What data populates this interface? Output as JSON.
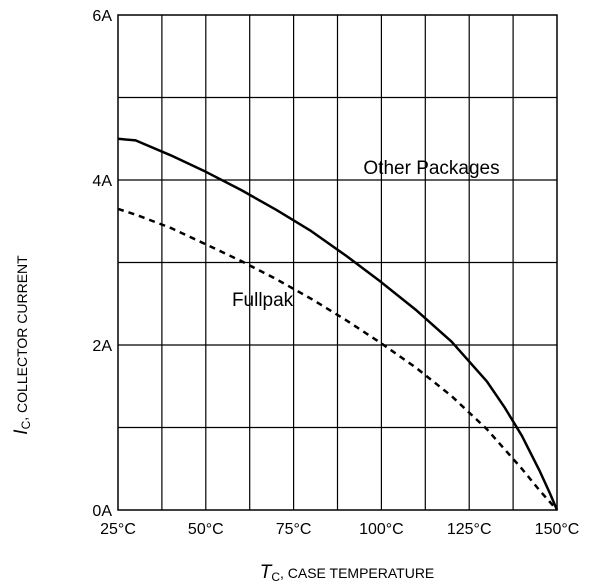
{
  "chart_data": {
    "type": "line",
    "title": "",
    "xlim": [
      25,
      150
    ],
    "ylim": [
      0,
      6
    ],
    "grid": true,
    "x_ticks": [
      {
        "value": 25,
        "label": "25°C"
      },
      {
        "value": 50,
        "label": "50°C"
      },
      {
        "value": 75,
        "label": "75°C"
      },
      {
        "value": 100,
        "label": "100°C"
      },
      {
        "value": 125,
        "label": "125°C"
      },
      {
        "value": 150,
        "label": "150°C"
      }
    ],
    "y_ticks": [
      {
        "value": 0,
        "label": "0A"
      },
      {
        "value": 2,
        "label": "2A"
      },
      {
        "value": 4,
        "label": "4A"
      },
      {
        "value": 6,
        "label": "6A"
      }
    ],
    "xlabel": {
      "symbol": "T",
      "subscript": "C",
      "text": ", CASE TEMPERATURE"
    },
    "ylabel": {
      "symbol": "I",
      "subscript": "C",
      "text": ", COLLECTOR CURRENT"
    },
    "series": [
      {
        "name": "Other Packages",
        "style": "solid",
        "color": "#000000",
        "x": [
          25,
          30,
          40,
          50,
          60,
          70,
          80,
          90,
          100,
          110,
          120,
          130,
          135,
          140,
          145,
          148,
          150
        ],
        "y": [
          4.5,
          4.48,
          4.3,
          4.1,
          3.88,
          3.64,
          3.38,
          3.08,
          2.76,
          2.42,
          2.04,
          1.56,
          1.25,
          0.9,
          0.48,
          0.2,
          0.0
        ]
      },
      {
        "name": "Fullpak",
        "style": "dashed",
        "color": "#000000",
        "x": [
          25,
          30,
          40,
          50,
          60,
          70,
          80,
          90,
          100,
          110,
          120,
          130,
          135,
          140,
          145,
          150
        ],
        "y": [
          3.65,
          3.58,
          3.42,
          3.22,
          3.02,
          2.8,
          2.56,
          2.3,
          2.02,
          1.72,
          1.38,
          0.98,
          0.74,
          0.5,
          0.24,
          0.0
        ]
      }
    ],
    "annotations": [
      {
        "text": "Other Packages",
        "series": "Other Packages"
      },
      {
        "text": "Fullpak",
        "series": "Fullpak"
      }
    ]
  }
}
